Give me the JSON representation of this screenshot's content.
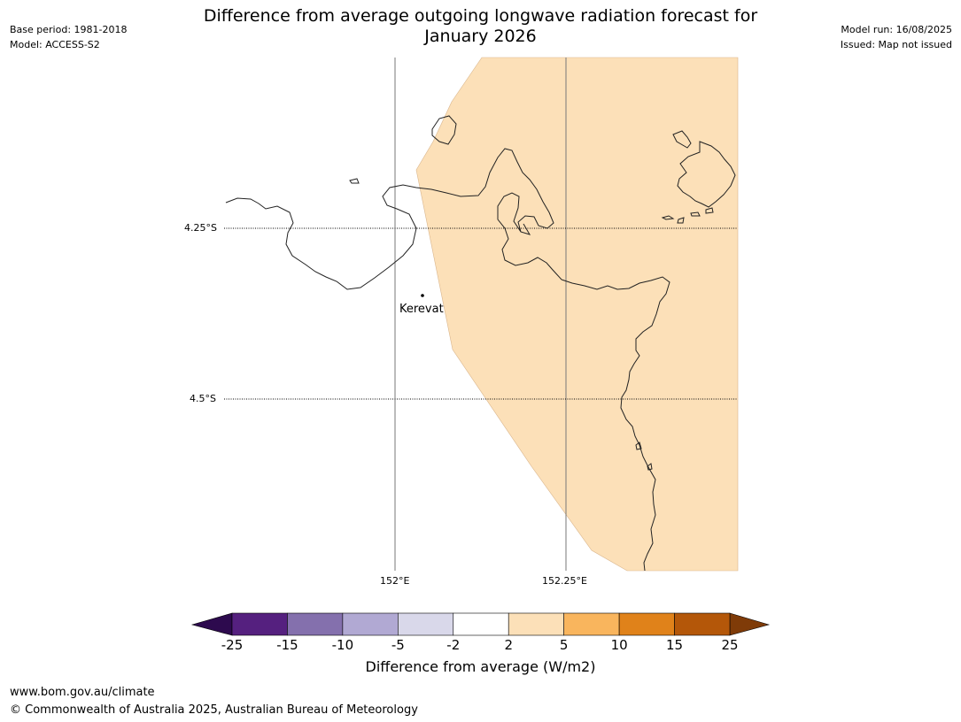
{
  "header": {
    "title_line1": "Difference from average outgoing longwave radiation forecast for",
    "title_line2": "January 2026",
    "base_period": "Base period: 1981-2018",
    "model": "Model: ACCESS-S2",
    "model_run": "Model run: 16/08/2025",
    "issued": "Issued: Map not issued"
  },
  "map": {
    "place_label": "Kerevat",
    "lat_labels": [
      "4.25°S",
      "4.5°S"
    ],
    "lon_labels": [
      "152°E",
      "152.25°E"
    ],
    "fill_color": "#fce0b8",
    "coast_color": "#222222"
  },
  "colorbar": {
    "label": "Difference from average (W/m2)",
    "ticks": [
      "-25",
      "-15",
      "-10",
      "-5",
      "-2",
      "2",
      "5",
      "10",
      "15",
      "25"
    ],
    "colors": [
      "#2d0a4e",
      "#55207f",
      "#8470ad",
      "#b1a9d3",
      "#d9d8ea",
      "#ffffff",
      "#fce0b8",
      "#f9b55d",
      "#e0821a",
      "#b45709",
      "#7f3b08"
    ]
  },
  "footer": {
    "url": "www.bom.gov.au/climate",
    "copyright": "© Commonwealth of Australia 2025, Australian Bureau of Meteorology"
  }
}
